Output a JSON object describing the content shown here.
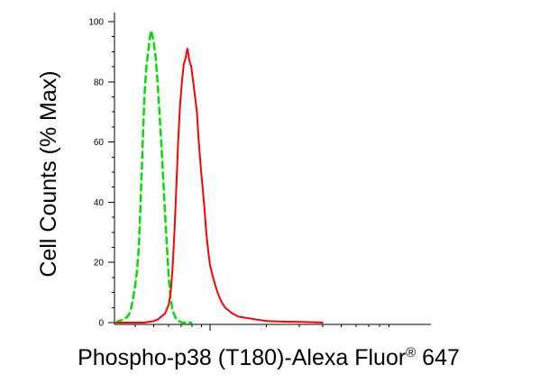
{
  "chart_data": {
    "type": "line",
    "title": "",
    "xlabel": "Phospho-p38 (T180)-Alexa Fluor",
    "xlabel_sup": "®",
    "xlabel_suffix": " 647",
    "ylabel": "Cell Counts (% Max)",
    "xscale": "log",
    "ylim": [
      0,
      100
    ],
    "y_ticks": [
      "0",
      "20",
      "40",
      "60",
      "80",
      "100"
    ],
    "y_tick_values": [
      0,
      20,
      40,
      60,
      80,
      100
    ],
    "grid": false,
    "legend": "none",
    "series": [
      {
        "color": "#00e000",
        "dash": "dashed",
        "points": [
          [
            0.5,
            0
          ],
          [
            0.51,
            0.5
          ],
          [
            0.54,
            1
          ],
          [
            0.56,
            2
          ],
          [
            0.57,
            3
          ],
          [
            0.58,
            5
          ],
          [
            0.59,
            8
          ],
          [
            0.6,
            12
          ],
          [
            0.61,
            17
          ],
          [
            0.62,
            25
          ],
          [
            0.63,
            40
          ],
          [
            0.64,
            58
          ],
          [
            0.65,
            75
          ],
          [
            0.66,
            85
          ],
          [
            0.67,
            90
          ],
          [
            0.68,
            95
          ],
          [
            0.685,
            97
          ],
          [
            0.69,
            96
          ],
          [
            0.7,
            93
          ],
          [
            0.71,
            88
          ],
          [
            0.72,
            80
          ],
          [
            0.73,
            70
          ],
          [
            0.74,
            60
          ],
          [
            0.75,
            48
          ],
          [
            0.76,
            36
          ],
          [
            0.77,
            25
          ],
          [
            0.78,
            15
          ],
          [
            0.79,
            8
          ],
          [
            0.8,
            4
          ],
          [
            0.82,
            1
          ],
          [
            0.85,
            0
          ],
          [
            0.9,
            0
          ]
        ]
      },
      {
        "color": "#ff0000",
        "dash": "solid",
        "points": [
          [
            0.5,
            0
          ],
          [
            0.55,
            0
          ],
          [
            0.6,
            0
          ],
          [
            0.65,
            0
          ],
          [
            0.7,
            0.5
          ],
          [
            0.72,
            1
          ],
          [
            0.74,
            2
          ],
          [
            0.76,
            3
          ],
          [
            0.78,
            6
          ],
          [
            0.79,
            10
          ],
          [
            0.8,
            18
          ],
          [
            0.81,
            30
          ],
          [
            0.82,
            45
          ],
          [
            0.83,
            60
          ],
          [
            0.84,
            72
          ],
          [
            0.85,
            80
          ],
          [
            0.86,
            86
          ],
          [
            0.87,
            88
          ],
          [
            0.875,
            90
          ],
          [
            0.88,
            91
          ],
          [
            0.89,
            87
          ],
          [
            0.9,
            85
          ],
          [
            0.91,
            80
          ],
          [
            0.92,
            75
          ],
          [
            0.93,
            70
          ],
          [
            0.94,
            60
          ],
          [
            0.95,
            52
          ],
          [
            0.96,
            45
          ],
          [
            0.97,
            38
          ],
          [
            0.98,
            30
          ],
          [
            0.99,
            24
          ],
          [
            1.0,
            19
          ],
          [
            1.02,
            14
          ],
          [
            1.04,
            10
          ],
          [
            1.06,
            7
          ],
          [
            1.08,
            5
          ],
          [
            1.1,
            4
          ],
          [
            1.12,
            3
          ],
          [
            1.15,
            2
          ],
          [
            1.2,
            1.5
          ],
          [
            1.25,
            1
          ],
          [
            1.3,
            0.5
          ],
          [
            1.4,
            0.3
          ],
          [
            1.5,
            0.2
          ],
          [
            1.6,
            0
          ]
        ]
      }
    ]
  },
  "colors": {
    "axis": "#000000",
    "green_series": "#00e000",
    "red_series": "#ff0000"
  }
}
